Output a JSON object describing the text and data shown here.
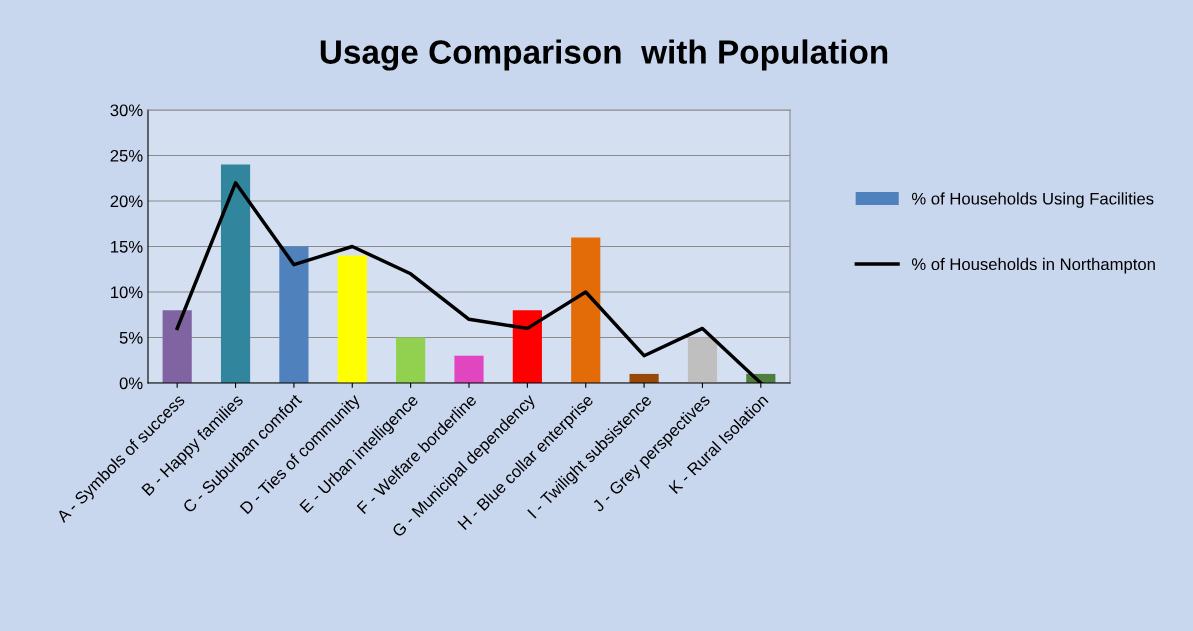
{
  "chart_data": {
    "type": "bar",
    "title": "Usage Comparison  with Population",
    "categories": [
      "A - Symbols of success",
      "B - Happy families",
      "C - Suburban comfort",
      "D - Ties of community",
      "E - Urban intelligence",
      "F - Welfare borderline",
      "G - Municipal dependency",
      "H - Blue collar enterprise",
      "I - Twilight subsistence",
      "J - Grey perspectives",
      "K - Rural Isolation"
    ],
    "series": [
      {
        "name": "% of Households Using Facilities",
        "color": "#4f81bd",
        "colors": [
          "#8064a2",
          "#31859c",
          "#4f81bd",
          "#ffff00",
          "#92d050",
          "#e046c0",
          "#ff0000",
          "#e36c09",
          "#984807",
          "#bfbfbf",
          "#4f7f3f"
        ],
        "values": [
          8,
          24,
          15,
          14,
          5,
          3,
          8,
          16,
          1,
          5,
          1
        ]
      },
      {
        "name": "% of Households in Northampton",
        "type": "line",
        "color": "#000000",
        "values": [
          6,
          22,
          13,
          15,
          12,
          7,
          6,
          10,
          3,
          6,
          0
        ]
      }
    ],
    "ylim": [
      0,
      30
    ],
    "yticks": [
      {
        "value": 0,
        "label": "0%"
      },
      {
        "value": 5,
        "label": "5%"
      },
      {
        "value": 10,
        "label": "10%"
      },
      {
        "value": 15,
        "label": "15%"
      },
      {
        "value": 20,
        "label": "20%"
      },
      {
        "value": 25,
        "label": "25%"
      },
      {
        "value": 30,
        "label": "30%"
      }
    ],
    "grid": "y",
    "legend": "right",
    "marker": "none",
    "line_style": "solid"
  }
}
